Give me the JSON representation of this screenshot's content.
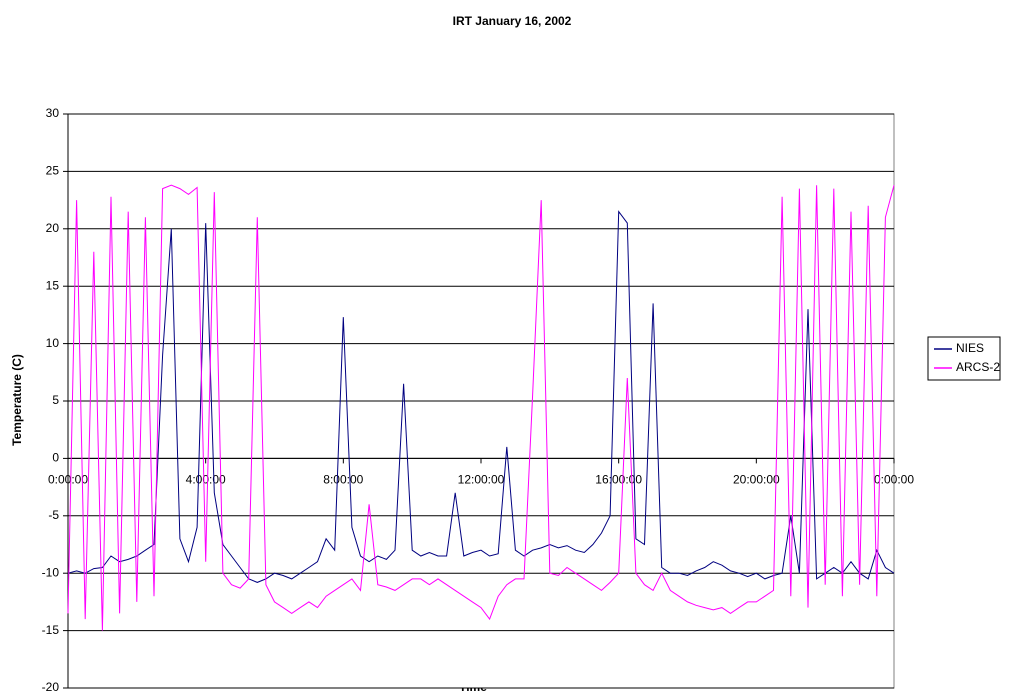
{
  "chart_data": {
    "type": "line",
    "title": "IRT January 16, 2002",
    "x_label": "Time",
    "y_label": "Temperature (C)",
    "x": [
      0,
      0.25,
      0.5,
      0.75,
      1,
      1.25,
      1.5,
      1.75,
      2,
      2.25,
      2.5,
      2.75,
      3,
      3.25,
      3.5,
      3.75,
      4,
      4.25,
      4.5,
      4.75,
      5,
      5.25,
      5.5,
      5.75,
      6,
      6.25,
      6.5,
      6.75,
      7,
      7.25,
      7.5,
      7.75,
      8,
      8.25,
      8.5,
      8.75,
      9,
      9.25,
      9.5,
      9.75,
      10,
      10.25,
      10.5,
      10.75,
      11,
      11.25,
      11.5,
      11.75,
      12,
      12.25,
      12.5,
      12.75,
      13,
      13.25,
      13.5,
      13.75,
      14,
      14.25,
      14.5,
      14.75,
      15,
      15.25,
      15.5,
      15.75,
      16,
      16.25,
      16.5,
      16.75,
      17,
      17.25,
      17.5,
      17.75,
      18,
      18.25,
      18.5,
      18.75,
      19,
      19.25,
      19.5,
      19.75,
      20,
      20.25,
      20.5,
      20.75,
      21,
      21.25,
      21.5,
      21.75,
      22,
      22.25,
      22.5,
      22.75,
      23,
      23.25,
      23.5,
      23.75,
      24
    ],
    "series": [
      {
        "name": "NIES",
        "color": "#000080",
        "values": [
          -10,
          -9.8,
          -10,
          -9.6,
          -9.5,
          -8.5,
          -9,
          -8.8,
          -8.5,
          -8,
          -7.5,
          9,
          20,
          -7,
          -9,
          -6,
          20.5,
          -3,
          -7.5,
          -8.5,
          -9.5,
          -10.5,
          -10.8,
          -10.5,
          -10,
          -10.2,
          -10.5,
          -10,
          -9.5,
          -9,
          -7,
          -8,
          12.3,
          -6,
          -8.5,
          -9,
          -8.5,
          -8.8,
          -8,
          6.5,
          -8,
          -8.5,
          -8.2,
          -8.5,
          -8.5,
          -3,
          -8.5,
          -8.2,
          -8,
          -8.5,
          -8.3,
          1,
          -8,
          -8.5,
          -8,
          -7.8,
          -7.5,
          -7.8,
          -7.6,
          -8,
          -8.2,
          -7.5,
          -6.5,
          -5,
          21.5,
          20.5,
          -7,
          -7.5,
          13.5,
          -9.5,
          -10,
          -10,
          -10.2,
          -9.8,
          -9.5,
          -9,
          -9.3,
          -9.8,
          -10,
          -10.3,
          -10,
          -10.5,
          -10.2,
          -10,
          -5,
          -10,
          13,
          -10.5,
          -10,
          -9.5,
          -10,
          -9,
          -10,
          -10.5,
          -8,
          -9.5,
          -10
        ]
      },
      {
        "name": "ARCS-2",
        "color": "#ff00ff",
        "values": [
          -13.5,
          22.5,
          -14,
          18,
          -15,
          22.8,
          -13.5,
          21.5,
          -12.5,
          21,
          -12,
          23.5,
          23.8,
          23.5,
          23,
          23.6,
          -9,
          23.2,
          -10,
          -11,
          -11.3,
          -10.5,
          21,
          -11,
          -12.5,
          -13,
          -13.5,
          -13,
          -12.5,
          -13,
          -12,
          -11.5,
          -11,
          -10.5,
          -11.5,
          -4,
          -11,
          -11.2,
          -11.5,
          -11,
          -10.5,
          -10.5,
          -11,
          -10.5,
          -11,
          -11.5,
          -12,
          -12.5,
          -13,
          -14,
          -12,
          -11,
          -10.5,
          -10.5,
          5.5,
          22.5,
          -10,
          -10.2,
          -9.5,
          -10,
          -10.5,
          -11,
          -11.5,
          -10.8,
          -10,
          7,
          -10,
          -11,
          -11.5,
          -10,
          -11.5,
          -12,
          -12.5,
          -12.8,
          -13,
          -13.2,
          -13,
          -13.5,
          -13,
          -12.5,
          -12.5,
          -12,
          -11.5,
          22.8,
          -12,
          23.5,
          -13,
          23.8,
          -11,
          23.5,
          -12,
          21.5,
          -11,
          22,
          -12,
          21,
          23.8
        ]
      }
    ],
    "xlim": [
      0,
      24
    ],
    "xticks": [
      {
        "value": 0,
        "label": "0:00:00"
      },
      {
        "value": 4,
        "label": "4:00:00"
      },
      {
        "value": 8,
        "label": "8:00:00"
      },
      {
        "value": 12,
        "label": "12:00:00"
      },
      {
        "value": 16,
        "label": "16:00:00"
      },
      {
        "value": 20,
        "label": "20:00:00"
      },
      {
        "value": 24,
        "label": "0:00:00"
      }
    ],
    "ylim": [
      -20,
      30
    ],
    "yticks": [
      -20,
      -15,
      -10,
      -5,
      0,
      5,
      10,
      15,
      20,
      25,
      30
    ],
    "grid": true,
    "legend": "right"
  }
}
